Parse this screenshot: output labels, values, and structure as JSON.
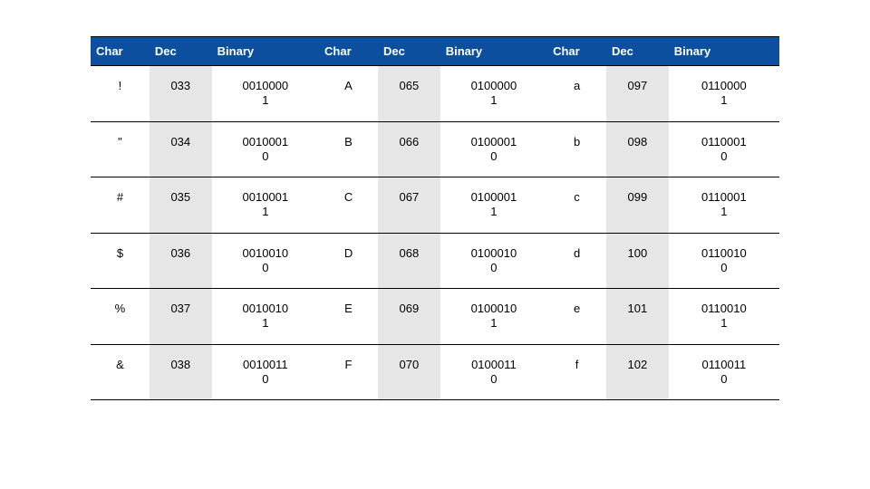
{
  "table": {
    "type": "table",
    "header_bg": "#0b4f9e",
    "header_fg": "#ffffff",
    "dec_col_bg": "#e6e6e6",
    "background_color": "#ffffff",
    "border_color": "#000000",
    "font_family": "Arial",
    "header_fontsize": 13,
    "cell_fontsize": 13,
    "col_widths_pct": [
      8.5,
      9,
      15.5,
      8.5,
      9,
      15.5,
      8.5,
      9,
      16
    ],
    "columns": [
      "Char",
      "Dec",
      "Binary",
      "Char",
      "Dec",
      "Binary",
      "Char",
      "Dec",
      "Binary"
    ],
    "rows": [
      [
        "!",
        "033",
        "0010000\n1",
        "A",
        "065",
        "0100000\n1",
        "a",
        "097",
        "0110000\n1"
      ],
      [
        "\"",
        "034",
        "0010001\n0",
        "B",
        "066",
        "0100001\n0",
        "b",
        "098",
        "0110001\n0"
      ],
      [
        "#",
        "035",
        "0010001\n1",
        "C",
        "067",
        "0100001\n1",
        "c",
        "099",
        "0110001\n1"
      ],
      [
        "$",
        "036",
        "0010010\n0",
        "D",
        "068",
        "0100010\n0",
        "d",
        "100",
        "0110010\n0"
      ],
      [
        "%",
        "037",
        "0010010\n1",
        "E",
        "069",
        "0100010\n1",
        "e",
        "101",
        "0110010\n1"
      ],
      [
        "&",
        "038",
        "0010011\n0",
        "F",
        "070",
        "0100011\n0",
        "f",
        "102",
        "0110011\n0"
      ]
    ]
  }
}
